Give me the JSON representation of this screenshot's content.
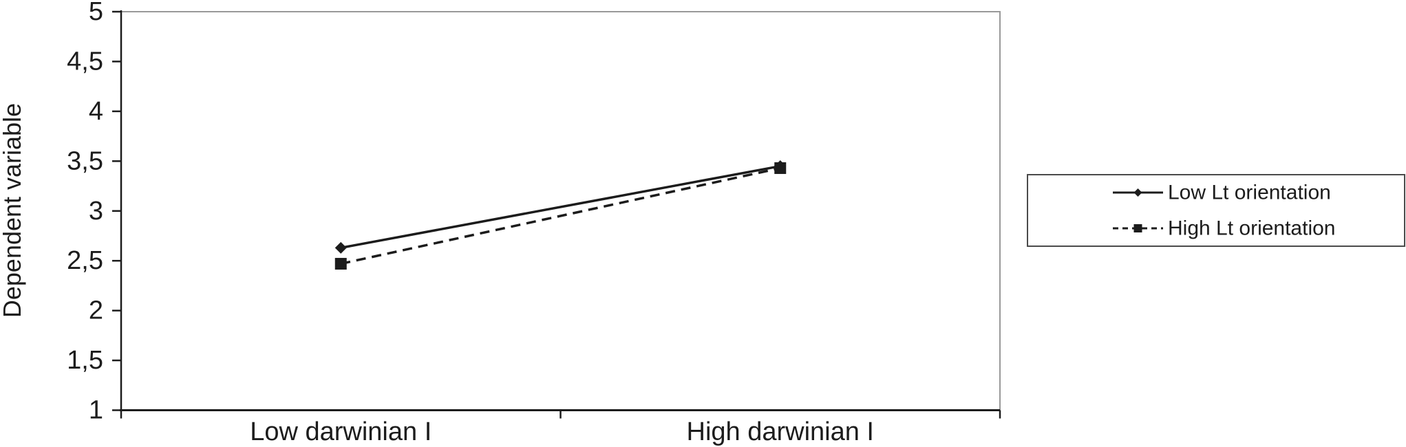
{
  "chart_data": {
    "type": "line",
    "title": "",
    "xlabel": "",
    "ylabel": "Dependent variable",
    "categories": [
      "Low darwinian I",
      "High darwinian I"
    ],
    "series": [
      {
        "name": "Low Lt orientation",
        "line_style": "solid",
        "marker": "diamond",
        "color": "#1c1c1c",
        "values": [
          2.63,
          3.45
        ]
      },
      {
        "name": "High Lt orientation",
        "line_style": "dashed",
        "marker": "square",
        "color": "#1c1c1c",
        "values": [
          2.47,
          3.43
        ]
      }
    ],
    "ylim": [
      1,
      5
    ],
    "yticks": [
      {
        "label": "5",
        "value": 5
      },
      {
        "label": "4,5",
        "value": 4.5
      },
      {
        "label": "4",
        "value": 4
      },
      {
        "label": "3,5",
        "value": 3.5
      },
      {
        "label": "3",
        "value": 3
      },
      {
        "label": "2,5",
        "value": 2.5
      },
      {
        "label": "2",
        "value": 2
      },
      {
        "label": "1,5",
        "value": 1.5
      },
      {
        "label": "1",
        "value": 1
      }
    ],
    "grid": false,
    "legend_position": "right",
    "colors": {
      "foreground": "#1c1c1c",
      "plot_border": "#999999",
      "legend_border": "#4a4a4a",
      "background": "#ffffff"
    }
  }
}
